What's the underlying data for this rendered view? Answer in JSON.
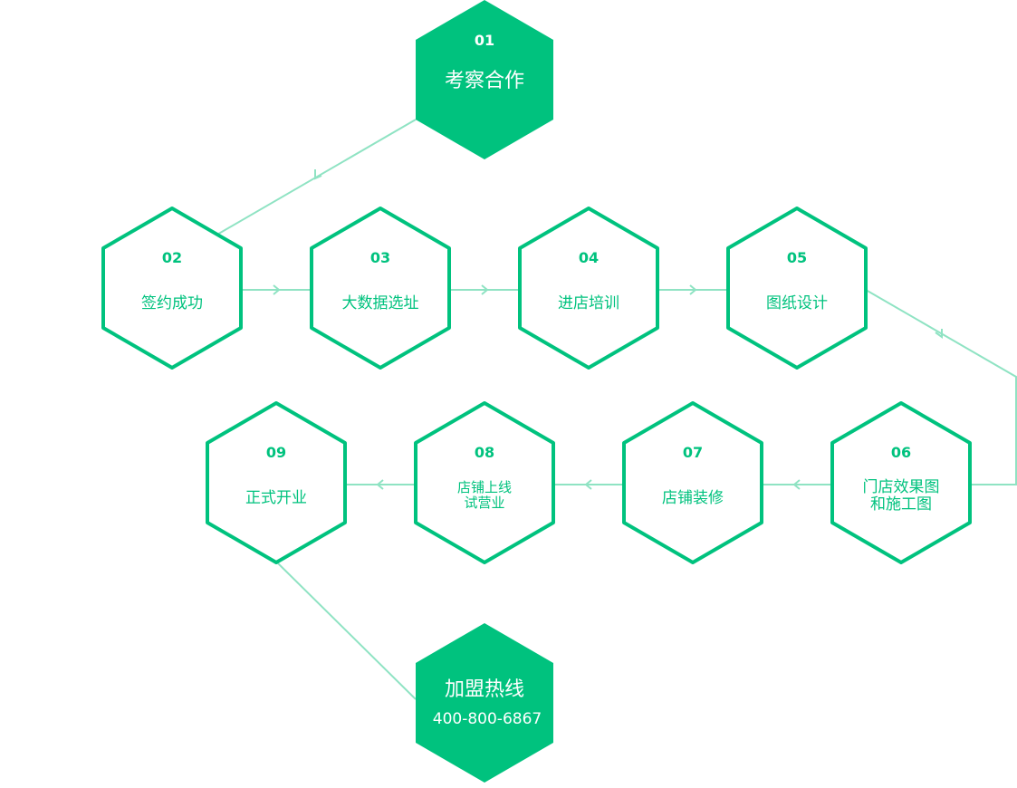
{
  "colors": {
    "accent": "#00c27e",
    "connector": "#8fe3c3",
    "filled_text": "#ffffff",
    "outline_fill": "#ffffff"
  },
  "steps": [
    {
      "num": "01",
      "lines": [
        "考察合作"
      ],
      "style": "filled"
    },
    {
      "num": "02",
      "lines": [
        "签约成功"
      ],
      "style": "outline"
    },
    {
      "num": "03",
      "lines": [
        "大数据选址"
      ],
      "style": "outline"
    },
    {
      "num": "04",
      "lines": [
        "进店培训"
      ],
      "style": "outline"
    },
    {
      "num": "05",
      "lines": [
        "图纸设计"
      ],
      "style": "outline"
    },
    {
      "num": "06",
      "lines": [
        "门店效果图",
        "和施工图"
      ],
      "style": "outline"
    },
    {
      "num": "07",
      "lines": [
        "店铺装修"
      ],
      "style": "outline"
    },
    {
      "num": "08",
      "lines": [
        "店铺上线",
        "试营业"
      ],
      "style": "outline"
    },
    {
      "num": "09",
      "lines": [
        "正式开业"
      ],
      "style": "outline"
    }
  ],
  "hotline": {
    "title": "加盟热线",
    "phone": "400-800-6867"
  }
}
